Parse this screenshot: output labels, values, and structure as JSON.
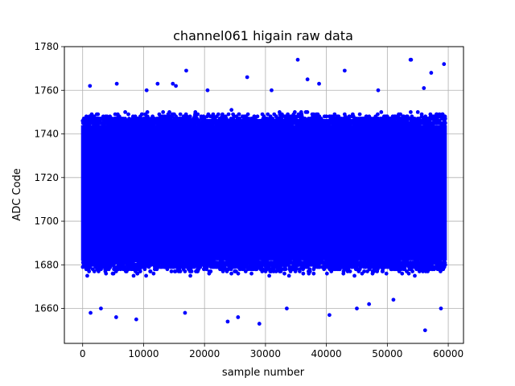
{
  "chart_data": {
    "type": "scatter",
    "title": "channel061 higain raw data",
    "xlabel": "sample number",
    "ylabel": "ADC Code",
    "xlim": [
      -3000,
      62500
    ],
    "ylim": [
      1644,
      1780
    ],
    "xticks": [
      0,
      10000,
      20000,
      30000,
      40000,
      50000,
      60000
    ],
    "xtick_labels": [
      "0",
      "10000",
      "20000",
      "30000",
      "40000",
      "50000",
      "60000"
    ],
    "yticks": [
      1660,
      1680,
      1700,
      1720,
      1740,
      1760,
      1780
    ],
    "ytick_labels": [
      "1660",
      "1680",
      "1700",
      "1720",
      "1740",
      "1760",
      "1780"
    ],
    "grid": true,
    "marker_color": "#0000ff",
    "series": [
      {
        "n_samples": 59500,
        "x_range": [
          0,
          59500
        ],
        "dense_band": [
          1682,
          1744
        ],
        "outlier_band": [
          1650,
          1774
        ],
        "points": [
          {
            "x": 1200,
            "y": 1762
          },
          {
            "x": 1300,
            "y": 1658
          },
          {
            "x": 5600,
            "y": 1763
          },
          {
            "x": 5500,
            "y": 1656
          },
          {
            "x": 8800,
            "y": 1655
          },
          {
            "x": 12300,
            "y": 1763
          },
          {
            "x": 14800,
            "y": 1763
          },
          {
            "x": 17000,
            "y": 1769
          },
          {
            "x": 15300,
            "y": 1762
          },
          {
            "x": 16800,
            "y": 1658
          },
          {
            "x": 23800,
            "y": 1654
          },
          {
            "x": 27000,
            "y": 1766
          },
          {
            "x": 29000,
            "y": 1653
          },
          {
            "x": 35300,
            "y": 1774
          },
          {
            "x": 36900,
            "y": 1765
          },
          {
            "x": 38800,
            "y": 1763
          },
          {
            "x": 40500,
            "y": 1657
          },
          {
            "x": 43000,
            "y": 1769
          },
          {
            "x": 47000,
            "y": 1662
          },
          {
            "x": 53800,
            "y": 1774
          },
          {
            "x": 53900,
            "y": 1774
          },
          {
            "x": 56200,
            "y": 1650
          },
          {
            "x": 57200,
            "y": 1768
          },
          {
            "x": 58800,
            "y": 1660
          },
          {
            "x": 59300,
            "y": 1772
          },
          {
            "x": 56000,
            "y": 1761
          },
          {
            "x": 48500,
            "y": 1760
          },
          {
            "x": 45000,
            "y": 1660
          },
          {
            "x": 31000,
            "y": 1760
          },
          {
            "x": 25500,
            "y": 1656
          },
          {
            "x": 20500,
            "y": 1760
          },
          {
            "x": 10500,
            "y": 1760
          },
          {
            "x": 3000,
            "y": 1660
          },
          {
            "x": 33500,
            "y": 1660
          },
          {
            "x": 51000,
            "y": 1664
          }
        ]
      }
    ]
  }
}
